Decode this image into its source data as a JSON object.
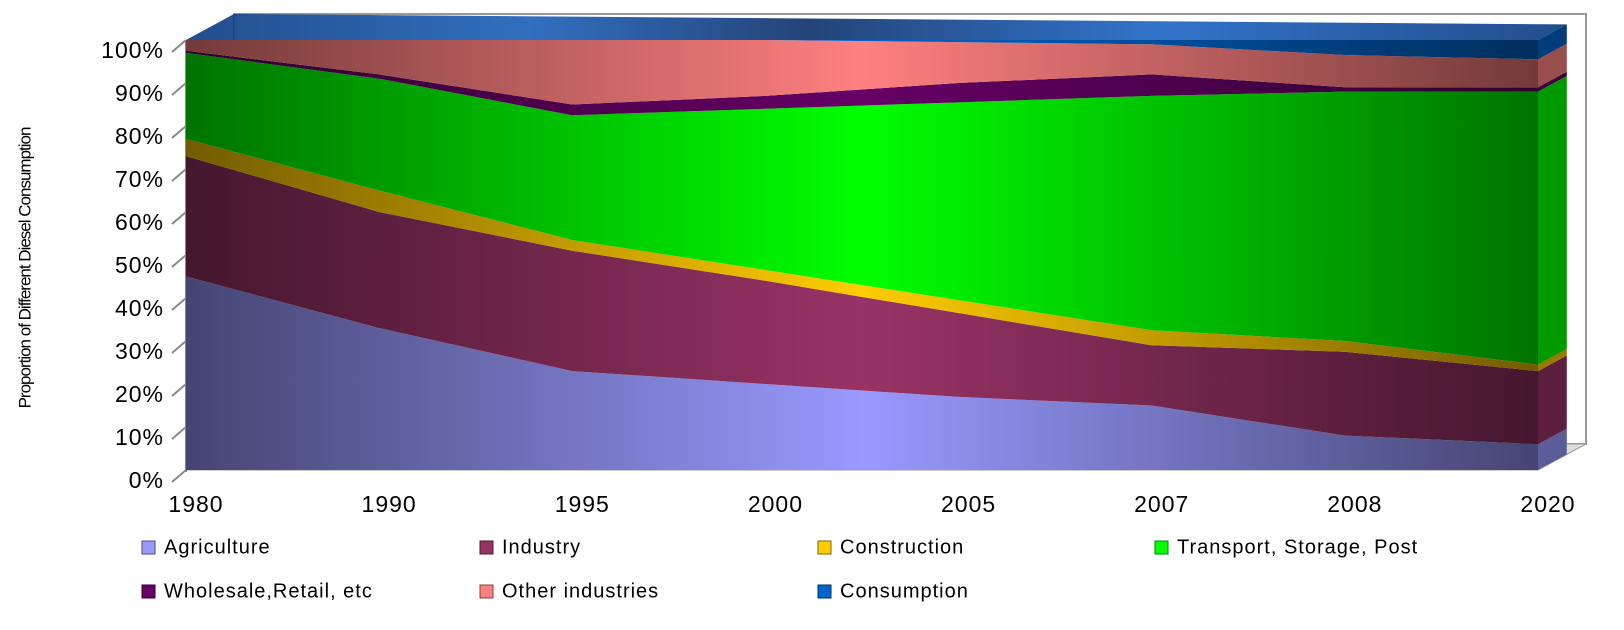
{
  "chart_data": {
    "type": "stacked_area",
    "y_label": "Proportion of Different Diesel Consumption",
    "categories": [
      "1980",
      "1990",
      "1995",
      "2000",
      "2005",
      "2007",
      "2008",
      "2020"
    ],
    "series": [
      {
        "name": "Agriculture",
        "color": "#9999ff",
        "values": [
          45,
          33,
          23,
          20,
          17,
          15,
          8,
          6
        ]
      },
      {
        "name": "Industry",
        "color": "#993366",
        "values": [
          28,
          27,
          28,
          24,
          19.5,
          14,
          19.5,
          17
        ]
      },
      {
        "name": "Construction",
        "color": "#ffcc00",
        "values": [
          4,
          5,
          2.5,
          2.5,
          3,
          3.5,
          2.5,
          1.5
        ]
      },
      {
        "name": "Transport, Storage, Post",
        "color": "#00ff00",
        "values": [
          20,
          26,
          29,
          37.5,
          46,
          54.5,
          58,
          63.5
        ]
      },
      {
        "name": "Wholesale,Retail, etc",
        "color": "#660066",
        "values": [
          0.5,
          1,
          2.5,
          3,
          4.5,
          5,
          1,
          1
        ]
      },
      {
        "name": "Other industries",
        "color": "#ff8080",
        "values": [
          2.5,
          8,
          15,
          13,
          9.5,
          7,
          7.5,
          6.5
        ]
      },
      {
        "name": "Consumption",
        "color": "#0066cc",
        "values": [
          0,
          0,
          0,
          0,
          0.5,
          1,
          3.5,
          4.5
        ]
      }
    ],
    "ylim": [
      0,
      100
    ],
    "yticks": [
      {
        "value": 0,
        "label": "0%"
      },
      {
        "value": 10,
        "label": "10%"
      },
      {
        "value": 20,
        "label": "20%"
      },
      {
        "value": 30,
        "label": "30%"
      },
      {
        "value": 40,
        "label": "40%"
      },
      {
        "value": 50,
        "label": "50%"
      },
      {
        "value": 60,
        "label": "60%"
      },
      {
        "value": 70,
        "label": "70%"
      },
      {
        "value": 80,
        "label": "80%"
      },
      {
        "value": 90,
        "label": "90%"
      },
      {
        "value": 100,
        "label": "100%"
      }
    ],
    "legend": "bottom"
  }
}
